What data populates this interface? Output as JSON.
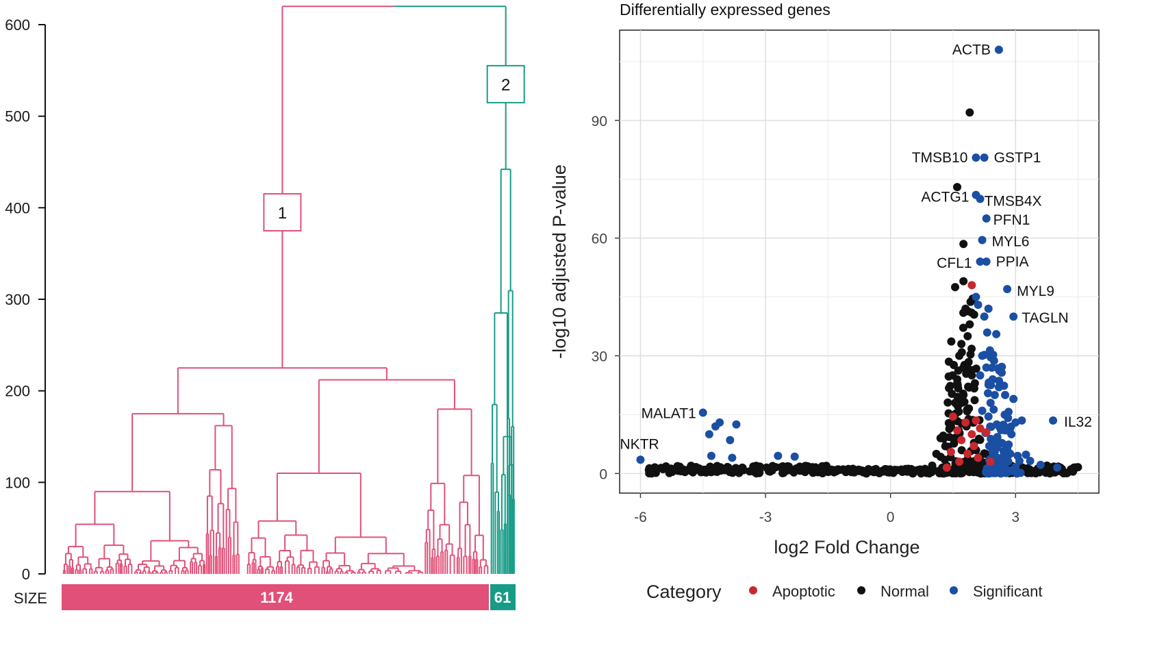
{
  "chart_data": [
    {
      "type": "dendrogram",
      "ylim": [
        0,
        600
      ],
      "yticks": [
        0,
        100,
        200,
        300,
        400,
        500,
        600
      ],
      "size_label": "SIZE",
      "colors": {
        "cluster1": "#e05078",
        "cluster2": "#169c86"
      },
      "root_height": 620,
      "clusters": [
        {
          "label": "1",
          "size": "1174",
          "merge_height": 225,
          "subgroups": [
            {
              "height": 175,
              "children": [
                90,
                162
              ]
            },
            {
              "height": 212,
              "children": [
                110,
                180
              ]
            }
          ]
        },
        {
          "label": "2",
          "size": "61",
          "merge_height": 442,
          "subgroups": [
            {
              "height": 285,
              "children": [
                185,
                150
              ]
            }
          ]
        }
      ]
    },
    {
      "type": "scatter",
      "title": "Differentially expressed genes",
      "xlabel": "log2 Fold Change",
      "ylabel": "-log10 adjusted P-value",
      "xlim": [
        -6.5,
        5.0
      ],
      "ylim": [
        -5,
        113
      ],
      "xticks": [
        -6,
        -3,
        0,
        3
      ],
      "yticks": [
        0,
        30,
        60,
        90
      ],
      "legend": {
        "title": "Category",
        "position": "bottom",
        "entries": [
          "Apoptotic",
          "Normal",
          "Significant"
        ]
      },
      "colors": {
        "Apoptotic": "#c9272e",
        "Normal": "#111111",
        "Significant": "#1a4fa3"
      },
      "labeled_points": [
        {
          "label": "ACTB",
          "x": 2.6,
          "y": 108,
          "category": "Significant"
        },
        {
          "label": "TMSB10",
          "x": 2.05,
          "y": 80.5,
          "category": "Significant"
        },
        {
          "label": "GSTP1",
          "x": 2.25,
          "y": 80.5,
          "category": "Significant"
        },
        {
          "label": "ACTG1",
          "x": 2.05,
          "y": 71,
          "category": "Significant"
        },
        {
          "label": "TMSB4X",
          "x": 2.15,
          "y": 70,
          "category": "Significant"
        },
        {
          "label": "PFN1",
          "x": 2.3,
          "y": 65,
          "category": "Significant"
        },
        {
          "label": "MYL6",
          "x": 2.2,
          "y": 59.5,
          "category": "Significant"
        },
        {
          "label": "CFL1",
          "x": 2.15,
          "y": 54,
          "category": "Significant"
        },
        {
          "label": "PPIA",
          "x": 2.3,
          "y": 54,
          "category": "Significant"
        },
        {
          "label": "MYL9",
          "x": 2.8,
          "y": 47,
          "category": "Significant"
        },
        {
          "label": "TAGLN",
          "x": 2.95,
          "y": 40,
          "category": "Significant"
        },
        {
          "label": "MALAT1",
          "x": -4.5,
          "y": 15.5,
          "category": "Significant"
        },
        {
          "label": "NKTR",
          "x": -6.0,
          "y": 3.5,
          "category": "Significant"
        },
        {
          "label": "IL32",
          "x": 3.9,
          "y": 13.5,
          "category": "Significant"
        }
      ],
      "points": [
        {
          "x": 1.9,
          "y": 92,
          "c": "Normal"
        },
        {
          "x": 1.6,
          "y": 73,
          "c": "Normal"
        },
        {
          "x": 1.75,
          "y": 58.5,
          "c": "Normal"
        },
        {
          "x": 1.75,
          "y": 49,
          "c": "Normal"
        },
        {
          "x": 1.55,
          "y": 47.5,
          "c": "Normal"
        },
        {
          "x": 1.95,
          "y": 48,
          "c": "Apoptotic"
        },
        {
          "x": 2.05,
          "y": 45,
          "c": "Significant"
        },
        {
          "x": 2.1,
          "y": 43,
          "c": "Significant"
        },
        {
          "x": 2.35,
          "y": 42,
          "c": "Significant"
        },
        {
          "x": 2.25,
          "y": 40,
          "c": "Significant"
        },
        {
          "x": 1.8,
          "y": 42,
          "c": "Normal"
        },
        {
          "x": 1.9,
          "y": 38,
          "c": "Normal"
        },
        {
          "x": 1.85,
          "y": 35,
          "c": "Normal"
        },
        {
          "x": 1.7,
          "y": 33,
          "c": "Normal"
        },
        {
          "x": 1.65,
          "y": 30,
          "c": "Normal"
        },
        {
          "x": 1.4,
          "y": 28.5,
          "c": "Normal"
        },
        {
          "x": 1.75,
          "y": 27,
          "c": "Normal"
        },
        {
          "x": 1.6,
          "y": 24,
          "c": "Normal"
        },
        {
          "x": 1.95,
          "y": 25,
          "c": "Normal"
        },
        {
          "x": 2.2,
          "y": 30,
          "c": "Significant"
        },
        {
          "x": 2.3,
          "y": 27,
          "c": "Significant"
        },
        {
          "x": 2.15,
          "y": 25,
          "c": "Significant"
        },
        {
          "x": 2.45,
          "y": 24,
          "c": "Significant"
        },
        {
          "x": 2.6,
          "y": 22,
          "c": "Significant"
        },
        {
          "x": 2.5,
          "y": 20,
          "c": "Significant"
        },
        {
          "x": 2.75,
          "y": 20,
          "c": "Significant"
        },
        {
          "x": 2.95,
          "y": 19,
          "c": "Significant"
        },
        {
          "x": 2.4,
          "y": 18,
          "c": "Significant"
        },
        {
          "x": 2.2,
          "y": 16,
          "c": "Significant"
        },
        {
          "x": 2.35,
          "y": 14.5,
          "c": "Significant"
        },
        {
          "x": 2.55,
          "y": 12.5,
          "c": "Significant"
        },
        {
          "x": 2.75,
          "y": 11,
          "c": "Significant"
        },
        {
          "x": 3.15,
          "y": 13.5,
          "c": "Significant"
        },
        {
          "x": 3.0,
          "y": 13,
          "c": "Significant"
        },
        {
          "x": 2.9,
          "y": 10,
          "c": "Significant"
        },
        {
          "x": 2.6,
          "y": 8,
          "c": "Significant"
        },
        {
          "x": 2.5,
          "y": 5.5,
          "c": "Significant"
        },
        {
          "x": 2.85,
          "y": 5,
          "c": "Significant"
        },
        {
          "x": 3.05,
          "y": 4.5,
          "c": "Significant"
        },
        {
          "x": 3.25,
          "y": 4.8,
          "c": "Significant"
        },
        {
          "x": 3.35,
          "y": 3.2,
          "c": "Significant"
        },
        {
          "x": 3.6,
          "y": 2.2,
          "c": "Significant"
        },
        {
          "x": 4.0,
          "y": 1.5,
          "c": "Significant"
        },
        {
          "x": 1.5,
          "y": 14.5,
          "c": "Apoptotic"
        },
        {
          "x": 1.8,
          "y": 13,
          "c": "Apoptotic"
        },
        {
          "x": 2.05,
          "y": 13.5,
          "c": "Apoptotic"
        },
        {
          "x": 1.6,
          "y": 11,
          "c": "Apoptotic"
        },
        {
          "x": 1.95,
          "y": 10,
          "c": "Apoptotic"
        },
        {
          "x": 2.15,
          "y": 11.5,
          "c": "Apoptotic"
        },
        {
          "x": 1.7,
          "y": 8.5,
          "c": "Apoptotic"
        },
        {
          "x": 2.0,
          "y": 7,
          "c": "Apoptotic"
        },
        {
          "x": 1.45,
          "y": 5.5,
          "c": "Apoptotic"
        },
        {
          "x": 1.85,
          "y": 5,
          "c": "Apoptotic"
        },
        {
          "x": 2.1,
          "y": 4,
          "c": "Apoptotic"
        },
        {
          "x": 1.65,
          "y": 3,
          "c": "Apoptotic"
        },
        {
          "x": 1.35,
          "y": 1.5,
          "c": "Apoptotic"
        },
        {
          "x": 2.4,
          "y": 3,
          "c": "Apoptotic"
        },
        {
          "x": 2.3,
          "y": 10.5,
          "c": "Apoptotic"
        },
        {
          "x": 1.2,
          "y": 9,
          "c": "Normal"
        },
        {
          "x": 1.1,
          "y": 5,
          "c": "Normal"
        },
        {
          "x": 1.3,
          "y": 3.5,
          "c": "Normal"
        },
        {
          "x": 1.0,
          "y": 2,
          "c": "Normal"
        },
        {
          "x": 1.55,
          "y": 18,
          "c": "Normal"
        },
        {
          "x": 1.45,
          "y": 12,
          "c": "Normal"
        },
        {
          "x": 1.75,
          "y": 20,
          "c": "Normal"
        },
        {
          "x": 4.4,
          "y": 1.5,
          "c": "Normal"
        },
        {
          "x": -4.1,
          "y": 13,
          "c": "Significant"
        },
        {
          "x": -4.2,
          "y": 12,
          "c": "Significant"
        },
        {
          "x": -3.7,
          "y": 12.5,
          "c": "Significant"
        },
        {
          "x": -4.35,
          "y": 10,
          "c": "Significant"
        },
        {
          "x": -3.85,
          "y": 8.5,
          "c": "Significant"
        },
        {
          "x": -4.3,
          "y": 4.5,
          "c": "Significant"
        },
        {
          "x": -3.8,
          "y": 4,
          "c": "Significant"
        },
        {
          "x": -2.7,
          "y": 4.5,
          "c": "Significant"
        },
        {
          "x": -2.3,
          "y": 4.3,
          "c": "Significant"
        },
        {
          "x": -5.65,
          "y": 1.5,
          "c": "Normal"
        },
        {
          "x": -5.2,
          "y": 1.0,
          "c": "Normal"
        }
      ]
    }
  ]
}
